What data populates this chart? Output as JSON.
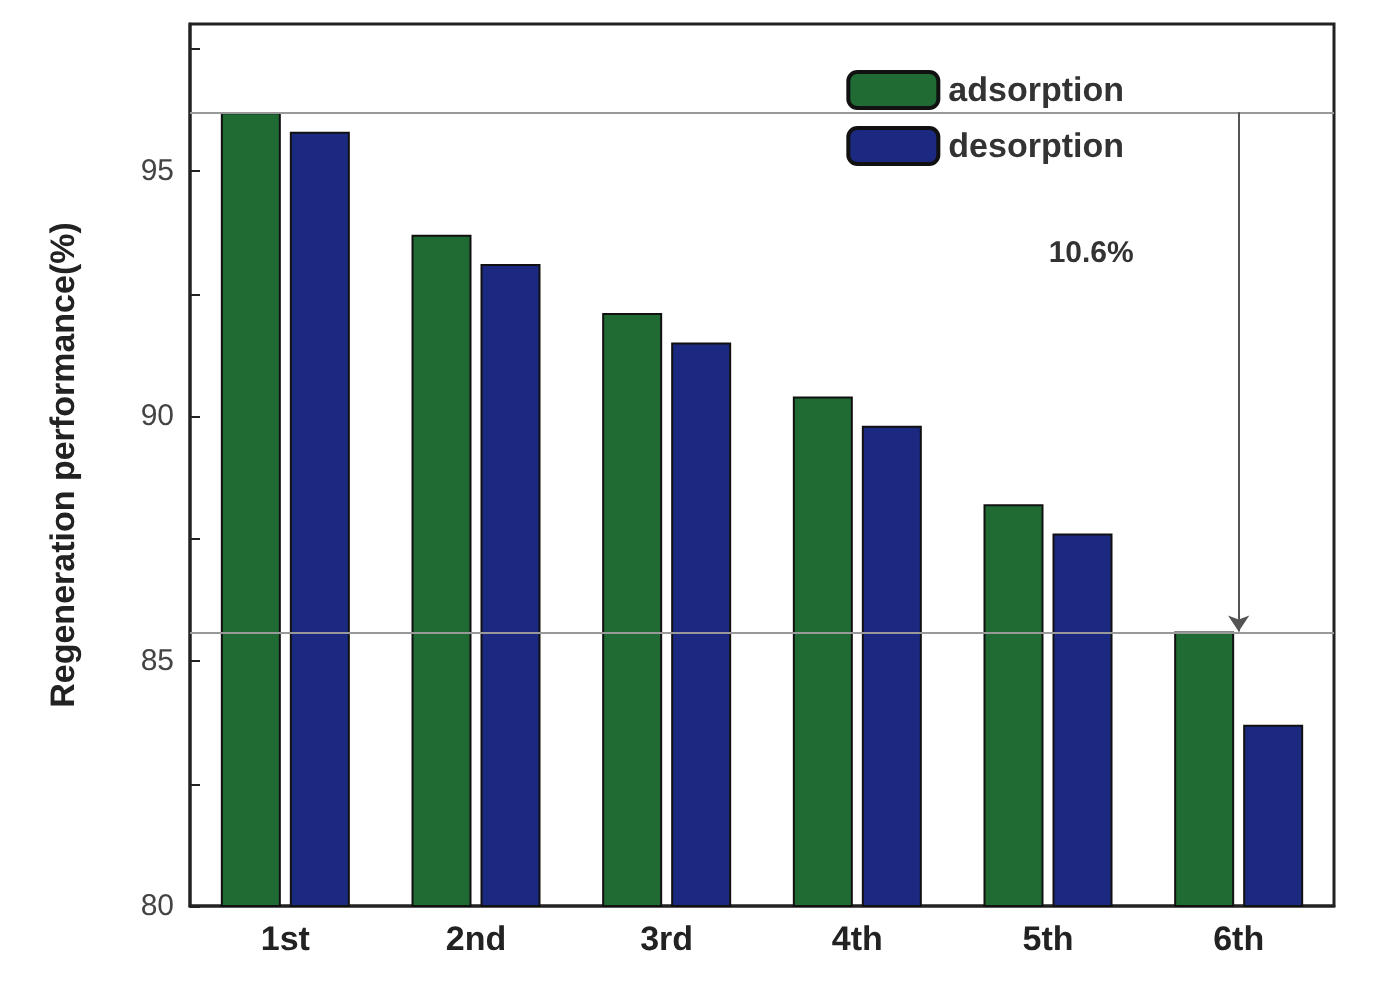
{
  "chart_data": {
    "type": "bar",
    "ylabel": "Regeneration performance(%)",
    "categories": [
      "1st",
      "2nd",
      "3rd",
      "4th",
      "5th",
      "6th"
    ],
    "series": [
      {
        "name": "adsorption",
        "color": "#1f6b33",
        "values": [
          96.2,
          93.7,
          92.1,
          90.4,
          88.2,
          85.6
        ]
      },
      {
        "name": "desorption",
        "color": "#1b2a80",
        "values": [
          95.8,
          93.1,
          91.5,
          89.8,
          87.6,
          83.7
        ]
      }
    ],
    "ylim": [
      80,
      98
    ],
    "yticks": [
      80,
      {
        "value": 82.5,
        "label": null
      },
      85,
      {
        "value": 87.5,
        "label": null
      },
      90,
      {
        "value": 92.5,
        "label": null
      },
      95,
      {
        "value": 97.5,
        "label": null
      }
    ],
    "ref_lines": [
      {
        "axis": "y",
        "value": 96.2,
        "color": "#999999"
      },
      {
        "axis": "y",
        "value": 85.6,
        "color": "#999999"
      }
    ],
    "annotations": [
      "10.6%"
    ],
    "grid": false,
    "legend": "top right"
  }
}
